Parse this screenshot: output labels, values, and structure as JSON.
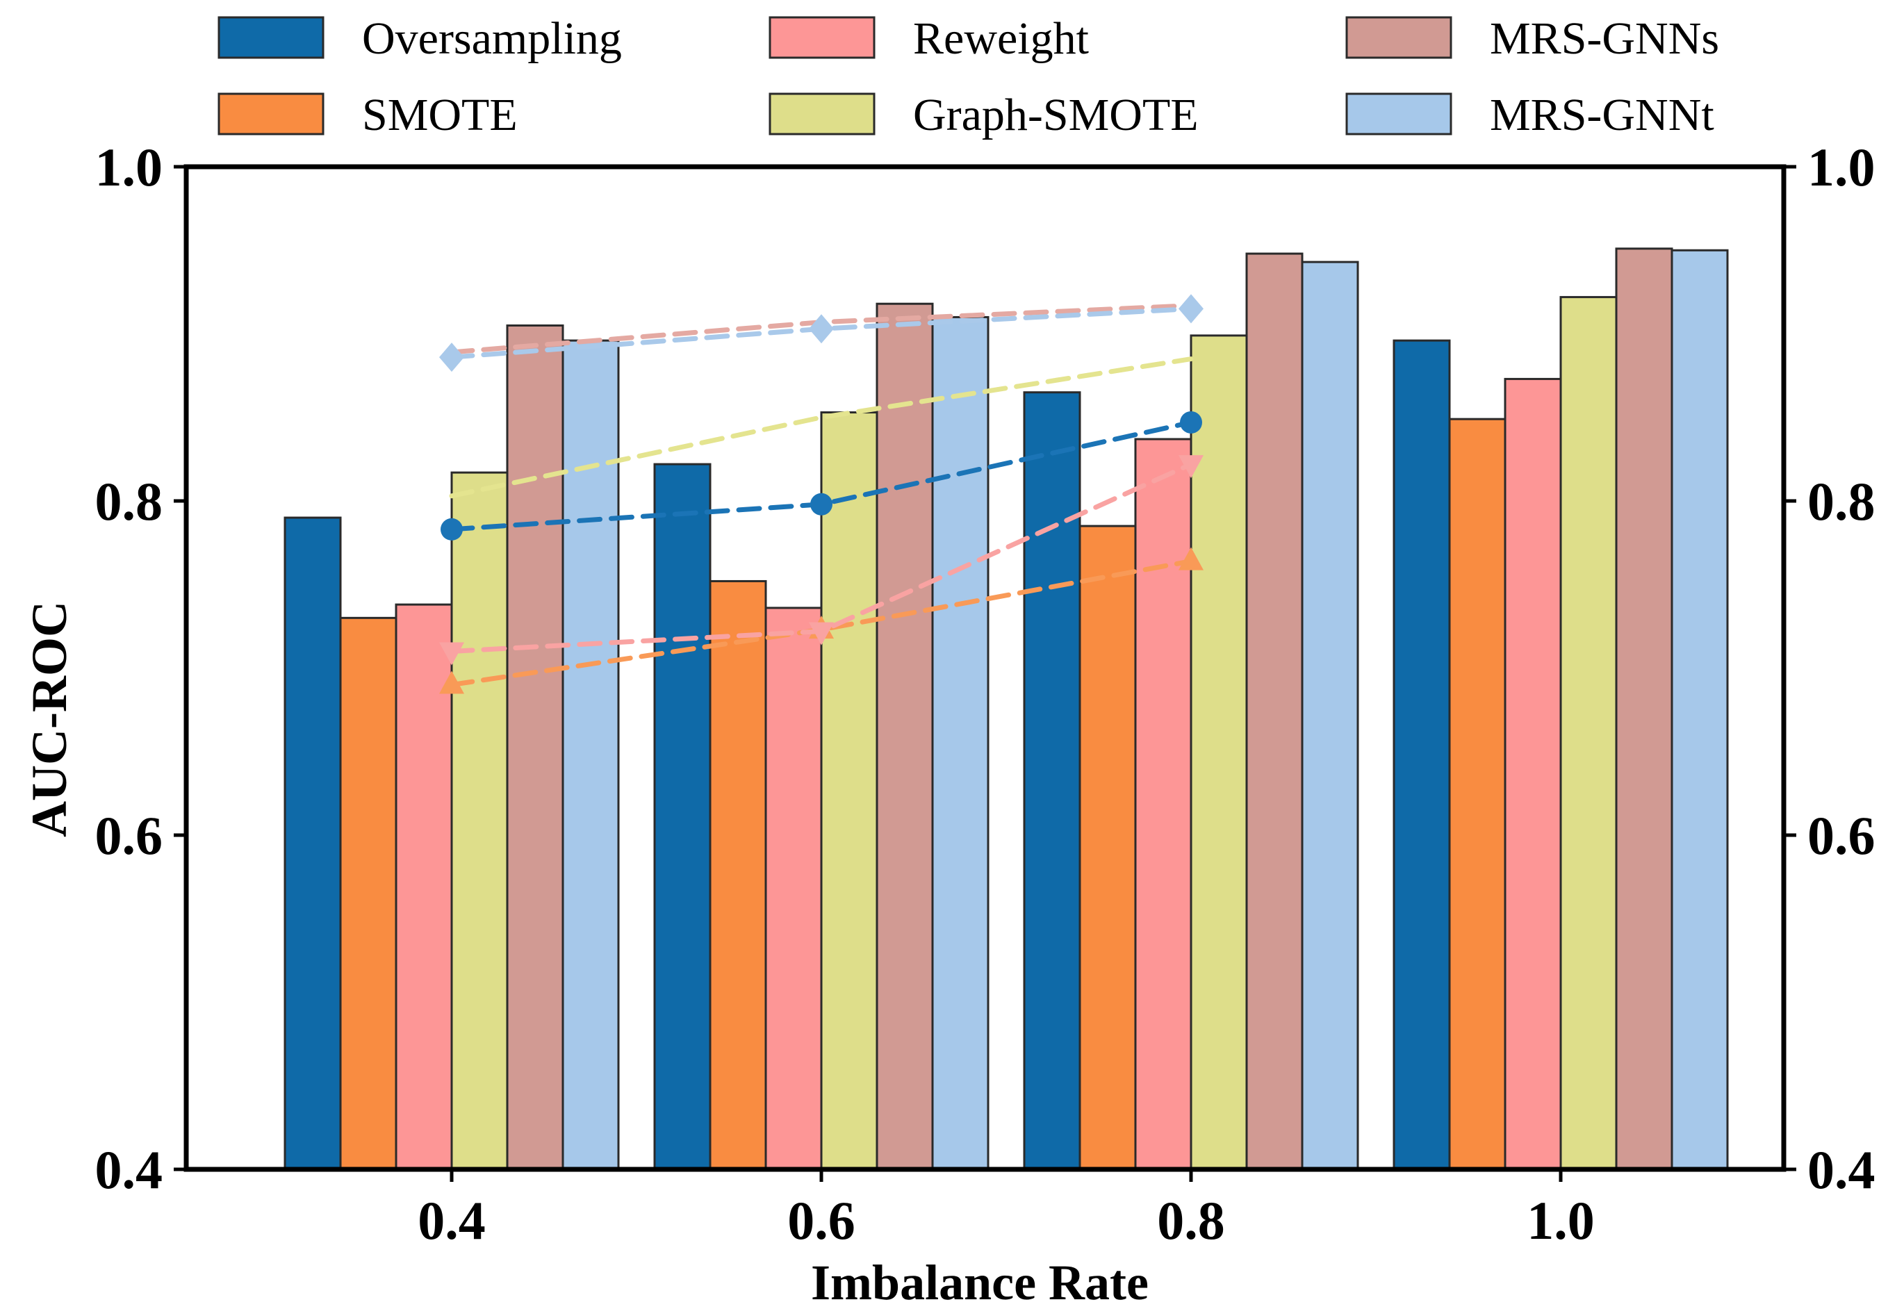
{
  "chart_data": {
    "type": "bar",
    "title": "",
    "xlabel": "Imbalance Rate",
    "ylabel": "AUC-ROC",
    "ylim": [
      0.4,
      1.0
    ],
    "yticks": [
      "0.4",
      "0.6",
      "0.8",
      "1.0"
    ],
    "right_yticks": [
      "0.4",
      "0.6",
      "0.8",
      "1.0"
    ],
    "categories": [
      "0.4",
      "0.6",
      "0.8",
      "1.0"
    ],
    "grid": false,
    "legend_position": "top",
    "series": [
      {
        "name": "Oversampling",
        "color": "#0f6aa8",
        "values": [
          0.79,
          0.822,
          0.865,
          0.896
        ]
      },
      {
        "name": "SMOTE",
        "color": "#f98c41",
        "values": [
          0.73,
          0.752,
          0.785,
          0.849
        ]
      },
      {
        "name": "Reweight",
        "color": "#fd9696",
        "values": [
          0.738,
          0.736,
          0.837,
          0.873
        ]
      },
      {
        "name": "Graph-SMOTE",
        "color": "#dede8a",
        "values": [
          0.817,
          0.853,
          0.899,
          0.922
        ]
      },
      {
        "name": "MRS-GNNs",
        "color": "#d19a93",
        "values": [
          0.905,
          0.918,
          0.948,
          0.951
        ]
      },
      {
        "name": "MRS-GNNt",
        "color": "#a6c8ea",
        "values": [
          0.896,
          0.91,
          0.943,
          0.95
        ]
      }
    ],
    "trend_lines": [
      {
        "name": "Oversampling",
        "color": "#1b74b6",
        "marker": "circle",
        "x": [
          "0.4",
          "0.6",
          "0.8"
        ],
        "values": [
          0.783,
          0.798,
          0.847
        ]
      },
      {
        "name": "SMOTE",
        "color": "#f99a57",
        "marker": "triangle-up",
        "x": [
          "0.4",
          "0.6",
          "0.8"
        ],
        "values": [
          0.69,
          0.723,
          0.764
        ]
      },
      {
        "name": "Reweight",
        "color": "#f9a3a2",
        "marker": "triangle-down",
        "x": [
          "0.4",
          "0.6",
          "0.8"
        ],
        "values": [
          0.71,
          0.722,
          0.822
        ]
      },
      {
        "name": "Graph-SMOTE",
        "color": "#e4e48f",
        "marker": "none",
        "x": [
          "0.4",
          "0.6",
          "0.8"
        ],
        "values": [
          0.803,
          0.85,
          0.885
        ]
      },
      {
        "name": "MRS-GNNs",
        "color": "#e4a9a2",
        "marker": "none",
        "x": [
          "0.4",
          "0.6",
          "0.8"
        ],
        "values": [
          0.889,
          0.907,
          0.917
        ]
      },
      {
        "name": "MRS-GNNt",
        "color": "#a9c9ea",
        "marker": "diamond",
        "x": [
          "0.4",
          "0.6",
          "0.8"
        ],
        "values": [
          0.886,
          0.903,
          0.915
        ]
      }
    ]
  }
}
